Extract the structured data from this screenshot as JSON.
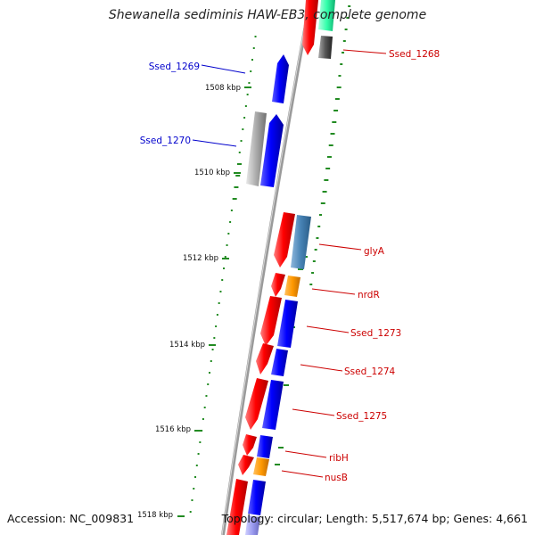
{
  "title": "Shewanella sediminis HAW-EB3, complete genome",
  "accession": "Accession: NC_009831",
  "summary": "Topology: circular; Length: 5,517,674 bp; Genes: 4,661",
  "kbp_ticks": [
    "1508 kbp",
    "1510 kbp",
    "1512 kbp",
    "1514 kbp",
    "1516 kbp",
    "1518 kbp"
  ],
  "gene_labels": [
    {
      "id": "ssed_1268",
      "text": "Ssed_1268",
      "color": "#cc0000"
    },
    {
      "id": "ssed_1269",
      "text": "Ssed_1269",
      "color": "#0000cc"
    },
    {
      "id": "ssed_1270",
      "text": "Ssed_1270",
      "color": "#0000cc"
    },
    {
      "id": "glya",
      "text": "glyA",
      "color": "#cc0000"
    },
    {
      "id": "nrdr",
      "text": "nrdR",
      "color": "#cc0000"
    },
    {
      "id": "ssed_1273",
      "text": "Ssed_1273",
      "color": "#cc0000"
    },
    {
      "id": "ssed_1274",
      "text": "Ssed_1274",
      "color": "#cc0000"
    },
    {
      "id": "ssed_1275",
      "text": "Ssed_1275",
      "color": "#cc0000"
    },
    {
      "id": "ribh",
      "text": "ribH",
      "color": "#cc0000"
    },
    {
      "id": "nusb",
      "text": "nusB",
      "color": "#cc0000"
    }
  ],
  "colors": {
    "backbone": "#8a8a8a",
    "cog_red": "#ff0000",
    "cog_blue": "#0000ff",
    "cog_orange": "#ff9900",
    "cog_steelblue": "#4682b4",
    "cog_gray": "#aaaaaa",
    "cog_aqua": "#33ffaa",
    "gc_dots": "#228b22"
  }
}
